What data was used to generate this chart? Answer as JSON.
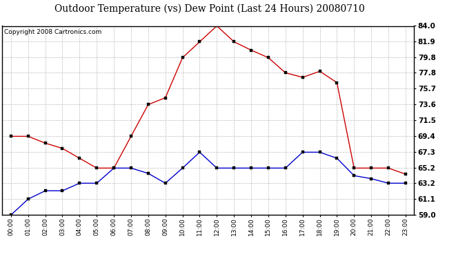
{
  "title": "Outdoor Temperature (vs) Dew Point (Last 24 Hours) 20080710",
  "copyright": "Copyright 2008 Cartronics.com",
  "hours": [
    0,
    1,
    2,
    3,
    4,
    5,
    6,
    7,
    8,
    9,
    10,
    11,
    12,
    13,
    14,
    15,
    16,
    17,
    18,
    19,
    20,
    21,
    22,
    23
  ],
  "temp": [
    69.4,
    69.4,
    68.5,
    67.8,
    66.5,
    65.2,
    65.2,
    69.4,
    73.6,
    74.5,
    79.8,
    81.9,
    84.0,
    81.9,
    80.8,
    79.8,
    77.8,
    77.2,
    78.0,
    76.5,
    65.2,
    65.2,
    65.2,
    64.4
  ],
  "dew": [
    59.0,
    61.1,
    62.2,
    62.2,
    63.2,
    63.2,
    65.2,
    65.2,
    64.5,
    63.2,
    65.2,
    67.3,
    65.2,
    65.2,
    65.2,
    65.2,
    65.2,
    67.3,
    67.3,
    66.5,
    64.2,
    63.8,
    63.2,
    63.2
  ],
  "ylim_min": 59.0,
  "ylim_max": 84.0,
  "yticks": [
    59.0,
    61.1,
    63.2,
    65.2,
    67.3,
    69.4,
    71.5,
    73.6,
    75.7,
    77.8,
    79.8,
    81.9,
    84.0
  ],
  "temp_color": "#cc0000",
  "dew_color": "#0000cc",
  "bg_color": "#ffffff",
  "grid_color": "#bbbbbb",
  "title_fontsize": 10,
  "copyright_fontsize": 6.5
}
